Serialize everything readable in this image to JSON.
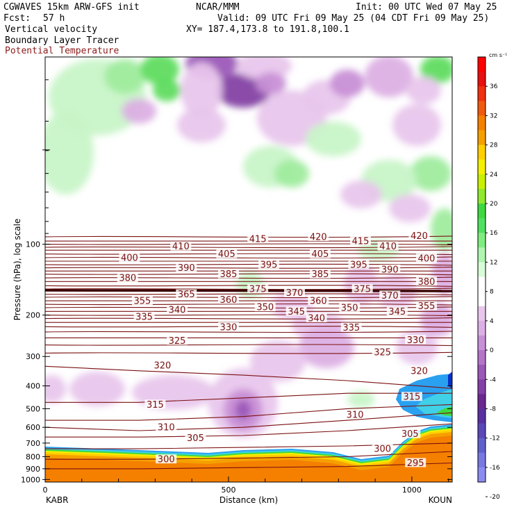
{
  "header": {
    "model": "CGWAVES 15km ARW-GFS init",
    "org": "NCAR/MMM",
    "init": "Init: 00 UTC Wed 07 May 25",
    "fcst_label": "Fcst:",
    "fcst_value": "57 h",
    "valid": "Valid: 09 UTC Fri 09 May 25 (04 CDT Fri 09 May 25)",
    "field1": "Vertical velocity",
    "xy": "XY= 187.4,173.8 to 191.8,100.1",
    "field2": "Boundary Layer Tracer",
    "field3": "Potential Temperature",
    "field3_color": "#8b1a1a"
  },
  "chart_data": {
    "type": "heatmap",
    "xlabel": "Distance (km)",
    "ylabel": "Pressure (hPa), log scale",
    "x_ticks": [
      "0",
      "500",
      "1000"
    ],
    "x_tick_values": [
      0,
      500,
      1000
    ],
    "x_range": [
      0,
      1110
    ],
    "y_scale": "log",
    "y_range": [
      1025,
      16
    ],
    "y_ticks": [
      100,
      200,
      300,
      400,
      500,
      600,
      700,
      800,
      900,
      1000
    ],
    "endpoints": {
      "left": "KABR",
      "right": "KOUN"
    },
    "colorbar": {
      "unit": "cm s⁻¹",
      "labels": [
        36,
        32,
        28,
        24,
        20,
        16,
        12,
        8,
        4,
        0,
        -4,
        -8,
        -12,
        -16,
        -20
      ],
      "colors": [
        "#ff0000",
        "#e81010",
        "#f03010",
        "#f05a10",
        "#f58000",
        "#f5a000",
        "#ffd000",
        "#f5f000",
        "#c8f000",
        "#90e830",
        "#40d840",
        "#50e060",
        "#80ec80",
        "#b0f4b0",
        "#d8fcd8",
        "#ffffff",
        "#ffffff",
        "#e8c6ec",
        "#dcb0e4",
        "#c890d6",
        "#b474c8",
        "#9c58b8",
        "#8440a4",
        "#6c2890",
        "#5a30a0",
        "#5a48b8",
        "#6060cc",
        "#7878e0",
        "#8c8cf0"
      ]
    },
    "theta_contours": {
      "color": "#7a1010",
      "labels": [
        {
          "v": 420,
          "x": 745,
          "p": 93
        },
        {
          "v": 420,
          "x": 1020,
          "p": 92
        },
        {
          "v": 415,
          "x": 580,
          "p": 95
        },
        {
          "v": 415,
          "x": 860,
          "p": 97
        },
        {
          "v": 410,
          "x": 370,
          "p": 102
        },
        {
          "v": 410,
          "x": 935,
          "p": 102
        },
        {
          "v": 405,
          "x": 495,
          "p": 110
        },
        {
          "v": 405,
          "x": 750,
          "p": 110
        },
        {
          "v": 400,
          "x": 230,
          "p": 114
        },
        {
          "v": 400,
          "x": 1040,
          "p": 115
        },
        {
          "v": 395,
          "x": 610,
          "p": 122
        },
        {
          "v": 395,
          "x": 855,
          "p": 122
        },
        {
          "v": 390,
          "x": 385,
          "p": 126
        },
        {
          "v": 390,
          "x": 940,
          "p": 128
        },
        {
          "v": 385,
          "x": 500,
          "p": 134
        },
        {
          "v": 385,
          "x": 750,
          "p": 134
        },
        {
          "v": 380,
          "x": 225,
          "p": 139
        },
        {
          "v": 380,
          "x": 1040,
          "p": 144
        },
        {
          "v": 375,
          "x": 580,
          "p": 155
        },
        {
          "v": 375,
          "x": 865,
          "p": 155
        },
        {
          "v": 370,
          "x": 680,
          "p": 161
        },
        {
          "v": 370,
          "x": 940,
          "p": 165
        },
        {
          "v": 365,
          "x": 385,
          "p": 163
        },
        {
          "v": 360,
          "x": 500,
          "p": 172
        },
        {
          "v": 360,
          "x": 745,
          "p": 174
        },
        {
          "v": 355,
          "x": 265,
          "p": 174
        },
        {
          "v": 355,
          "x": 1040,
          "p": 183
        },
        {
          "v": 350,
          "x": 600,
          "p": 185
        },
        {
          "v": 350,
          "x": 830,
          "p": 186
        },
        {
          "v": 345,
          "x": 685,
          "p": 193
        },
        {
          "v": 345,
          "x": 960,
          "p": 193
        },
        {
          "v": 340,
          "x": 360,
          "p": 190
        },
        {
          "v": 340,
          "x": 740,
          "p": 206
        },
        {
          "v": 335,
          "x": 270,
          "p": 203
        },
        {
          "v": 335,
          "x": 835,
          "p": 226
        },
        {
          "v": 330,
          "x": 500,
          "p": 225
        },
        {
          "v": 330,
          "x": 1010,
          "p": 255
        },
        {
          "v": 325,
          "x": 360,
          "p": 257
        },
        {
          "v": 325,
          "x": 920,
          "p": 288
        },
        {
          "v": 320,
          "x": 320,
          "p": 327
        },
        {
          "v": 320,
          "x": 1020,
          "p": 345
        },
        {
          "v": 315,
          "x": 300,
          "p": 480
        },
        {
          "v": 315,
          "x": 1000,
          "p": 445
        },
        {
          "v": 310,
          "x": 330,
          "p": 600
        },
        {
          "v": 310,
          "x": 845,
          "p": 530
        },
        {
          "v": 305,
          "x": 410,
          "p": 665
        },
        {
          "v": 305,
          "x": 995,
          "p": 640
        },
        {
          "v": 300,
          "x": 330,
          "p": 820
        },
        {
          "v": 300,
          "x": 920,
          "p": 740
        },
        {
          "v": 295,
          "x": 1010,
          "p": 850
        }
      ]
    }
  }
}
